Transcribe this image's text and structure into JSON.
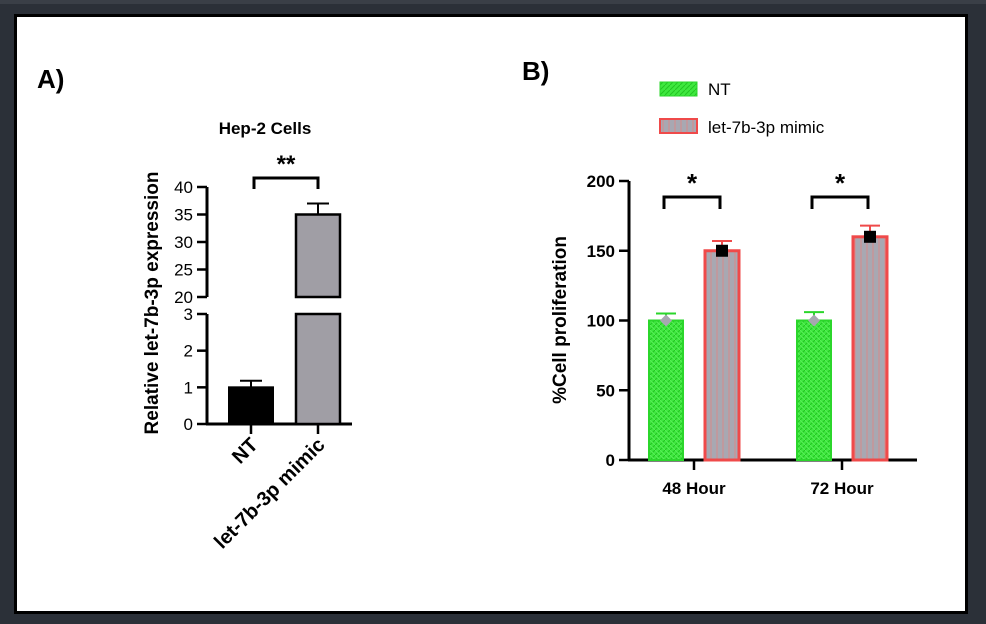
{
  "figure": {
    "panel_a_label": "A)",
    "panel_b_label": "B)"
  },
  "chart_data": [
    {
      "type": "bar",
      "title": "Hep-2 Cells",
      "xlabel": "",
      "ylabel": "Relative let-7b-3p expression",
      "categories": [
        "NT",
        "let-7b-3p mimic"
      ],
      "values": [
        1.0,
        35.0
      ],
      "errors": [
        0.18,
        2.0
      ],
      "colors": [
        "#000000",
        "#a09ea5"
      ],
      "broken_axis": true,
      "lower_segment": {
        "range": [
          0,
          3
        ],
        "ticks": [
          "0",
          "1",
          "2",
          "3"
        ]
      },
      "upper_segment": {
        "range": [
          20,
          40
        ],
        "ticks": [
          "20",
          "25",
          "30",
          "35",
          "40"
        ]
      },
      "significance": "**",
      "grid": false
    },
    {
      "type": "bar",
      "title": "",
      "xlabel": "",
      "ylabel": "%Cell proliferation",
      "categories": [
        "48 Hour",
        "72 Hour"
      ],
      "ylim": [
        0,
        200
      ],
      "yticks": [
        "0",
        "50",
        "100",
        "150",
        "200"
      ],
      "series": [
        {
          "name": "NT",
          "values": [
            100,
            100
          ],
          "errors": [
            5,
            6
          ],
          "color": "#33e633",
          "edge": "#2bd62b"
        },
        {
          "name": "let-7b-3p mimic",
          "values": [
            150,
            160
          ],
          "errors": [
            7,
            8
          ],
          "color": "#a7a7b0",
          "edge": "#ef4a4a"
        }
      ],
      "significance": [
        "*",
        "*"
      ],
      "legend": "top",
      "grid": false
    }
  ]
}
